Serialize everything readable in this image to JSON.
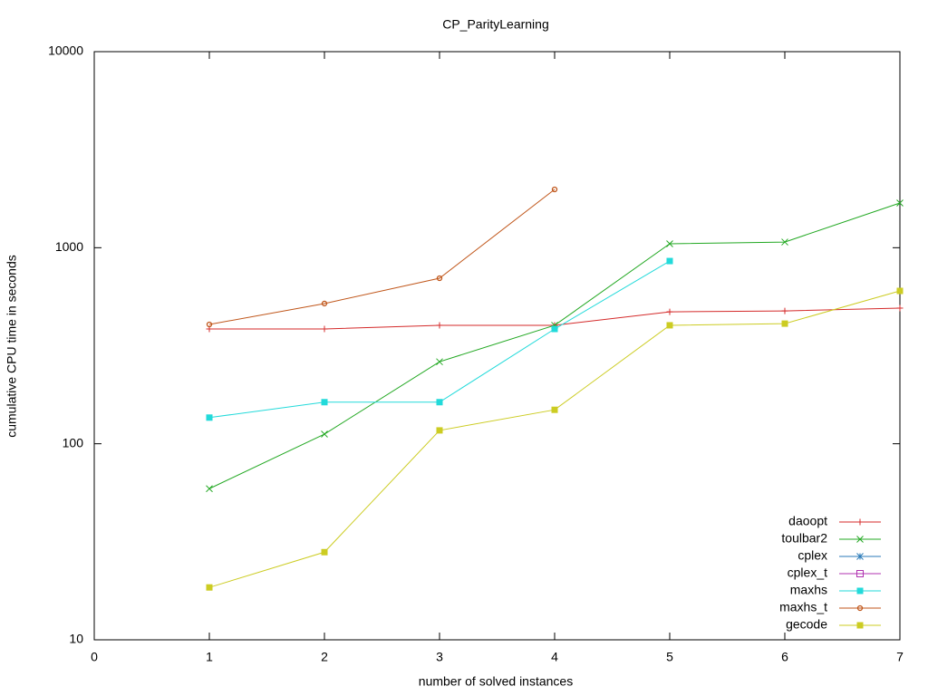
{
  "chart_data": {
    "type": "line",
    "title": "CP_ParityLearning",
    "x_label": "number of solved instances",
    "y_label": "cumulative CPU time in seconds",
    "xlim": [
      0,
      7
    ],
    "xticks": [
      0,
      1,
      2,
      3,
      4,
      5,
      6,
      7
    ],
    "ylim": [
      10,
      10000
    ],
    "yticks": [
      10,
      100,
      1000,
      10000
    ],
    "log_y": true,
    "grid": false,
    "legend": "bottom-right",
    "series": [
      {
        "name": "daoopt",
        "color": "#d42a2a",
        "marker": "plus",
        "x": [
          1,
          2,
          3,
          4,
          5,
          6,
          7
        ],
        "values": [
          385,
          385,
          402,
          402,
          471,
          476,
          492
        ]
      },
      {
        "name": "toulbar2",
        "color": "#22a822",
        "marker": "cross",
        "x": [
          1,
          2,
          3,
          4,
          5,
          6,
          7
        ],
        "values": [
          59,
          112,
          262,
          402,
          1047,
          1069,
          1690
        ]
      },
      {
        "name": "cplex",
        "color": "#2a7ab8",
        "marker": "star",
        "x": [],
        "values": []
      },
      {
        "name": "cplex_t",
        "color": "#b030b0",
        "marker": "open-square",
        "x": [],
        "values": []
      },
      {
        "name": "maxhs",
        "color": "#22dada",
        "marker": "square",
        "x": [
          1,
          2,
          3,
          4,
          5
        ],
        "values": [
          136,
          163,
          163,
          385,
          855
        ]
      },
      {
        "name": "maxhs_t",
        "color": "#c0561a",
        "marker": "open-circle",
        "x": [
          1,
          2,
          3,
          4
        ],
        "values": [
          406,
          519,
          699,
          1983
        ]
      },
      {
        "name": "gecode",
        "color": "#cccc22",
        "marker": "square",
        "x": [
          1,
          2,
          3,
          4,
          5,
          6,
          7
        ],
        "values": [
          18.5,
          28,
          117,
          149,
          402,
          410,
          602
        ]
      }
    ]
  }
}
